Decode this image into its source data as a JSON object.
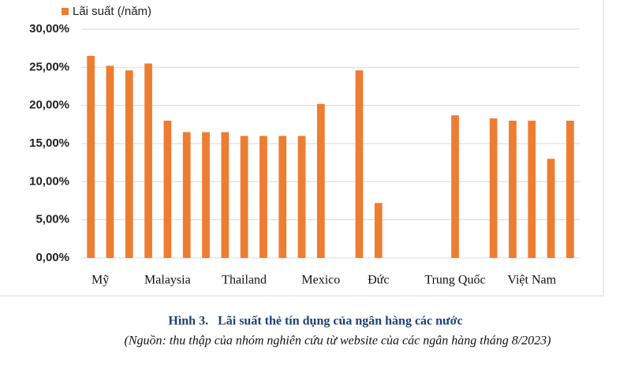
{
  "chart_data": {
    "type": "bar",
    "categories": [
      "Mỹ",
      null,
      null,
      null,
      "Malaysia",
      null,
      null,
      null,
      "Thailand",
      null,
      null,
      null,
      "Mexico",
      null,
      null,
      "Đức",
      null,
      null,
      null,
      "Trung Quốc",
      null,
      null,
      null,
      "Việt Nam",
      null,
      null
    ],
    "series": [
      {
        "name": "Lãi suất (/năm)",
        "color": "#ed7d31",
        "values": [
          26.5,
          25.2,
          24.6,
          25.5,
          18.0,
          16.5,
          16.5,
          16.5,
          16.0,
          16.0,
          16.0,
          16.0,
          20.2,
          null,
          24.6,
          7.2,
          null,
          null,
          null,
          18.7,
          null,
          18.3,
          18.0,
          18.0,
          13.0,
          18.0
        ]
      }
    ],
    "ylim": [
      0,
      30
    ],
    "yticks": [
      {
        "value": 0,
        "label": "0,00%"
      },
      {
        "value": 5,
        "label": "5,00%"
      },
      {
        "value": 10,
        "label": "10,00%"
      },
      {
        "value": 15,
        "label": "15,00%"
      },
      {
        "value": 20,
        "label": "20,00%"
      },
      {
        "value": 25,
        "label": "25,00%"
      },
      {
        "value": 30,
        "label": "30,00%"
      }
    ],
    "grid": true,
    "legend": "top-left",
    "caption": "Hình 3.   Lãi suất thẻ tín dụng của ngân hàng các nước",
    "source": "(Nguồn: thu thập của nhóm nghiên cứu từ website của các ngân hàng tháng 8/2023)"
  }
}
